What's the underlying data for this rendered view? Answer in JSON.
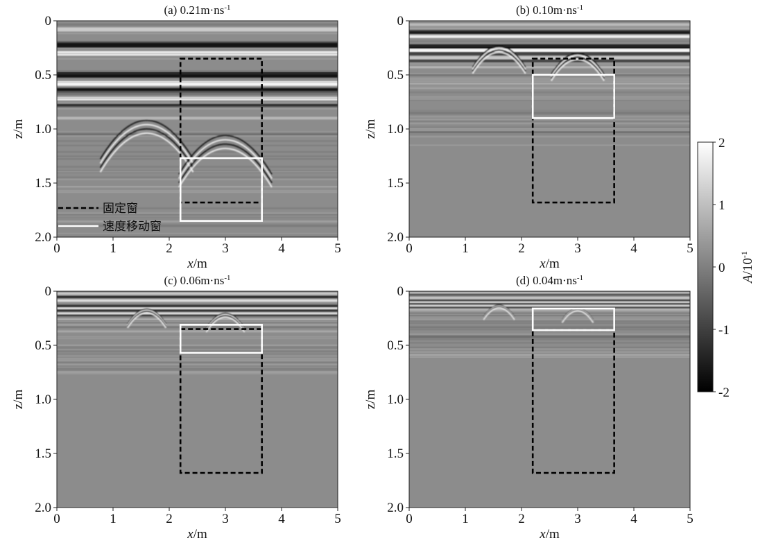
{
  "figure": {
    "x_label_var": "x",
    "x_label_unit": "/m",
    "y_label": "z/m",
    "colorbar_label_var": "A",
    "colorbar_label_unit": "/10",
    "colorbar_label_exp": "-1",
    "legend": {
      "fixed_window": "固定窗",
      "velocity_moving_window": "速度移动窗"
    }
  },
  "chart_data": [
    {
      "type": "heatmap",
      "panel": "a",
      "title": "(a) 0.21m·ns",
      "title_exp": "-1",
      "xlim": [
        0,
        5
      ],
      "ylim": [
        0,
        2.0
      ],
      "x_ticks": [
        "0",
        "1",
        "2",
        "3",
        "4",
        "5"
      ],
      "y_ticks": [
        "0",
        "0.5",
        "1.0",
        "1.5",
        "2.0"
      ],
      "velocity": 0.21,
      "fixed_window": {
        "x": [
          2.2,
          3.65
        ],
        "z": [
          0.35,
          1.68
        ]
      },
      "moving_window": {
        "x": [
          2.2,
          3.65
        ],
        "z": [
          1.27,
          1.85
        ]
      },
      "show_legend": true
    },
    {
      "type": "heatmap",
      "panel": "b",
      "title": "(b) 0.10m·ns",
      "title_exp": "-1",
      "xlim": [
        0,
        5
      ],
      "ylim": [
        0,
        2.0
      ],
      "x_ticks": [
        "0",
        "1",
        "2",
        "3",
        "4",
        "5"
      ],
      "y_ticks": [
        "0",
        "0.5",
        "1.0",
        "1.5",
        "2.0"
      ],
      "velocity": 0.1,
      "fixed_window": {
        "x": [
          2.2,
          3.65
        ],
        "z": [
          0.35,
          1.68
        ]
      },
      "moving_window": {
        "x": [
          2.2,
          3.65
        ],
        "z": [
          0.5,
          0.9
        ]
      },
      "show_legend": false
    },
    {
      "type": "heatmap",
      "panel": "c",
      "title": "(c) 0.06m·ns",
      "title_exp": "-1",
      "xlim": [
        0,
        5
      ],
      "ylim": [
        0,
        2.0
      ],
      "x_ticks": [
        "0",
        "1",
        "2",
        "3",
        "4",
        "5"
      ],
      "y_ticks": [
        "0",
        "0.5",
        "1.0",
        "1.5",
        "2.0"
      ],
      "velocity": 0.06,
      "fixed_window": {
        "x": [
          2.2,
          3.65
        ],
        "z": [
          0.35,
          1.68
        ]
      },
      "moving_window": {
        "x": [
          2.2,
          3.65
        ],
        "z": [
          0.31,
          0.57
        ]
      },
      "show_legend": false
    },
    {
      "type": "heatmap",
      "panel": "d",
      "title": "(d) 0.04m·ns",
      "title_exp": "-1",
      "xlim": [
        0,
        5
      ],
      "ylim": [
        0,
        2.0
      ],
      "x_ticks": [
        "0",
        "1",
        "2",
        "3",
        "4",
        "5"
      ],
      "y_ticks": [
        "0",
        "0.5",
        "1.0",
        "1.5",
        "2.0"
      ],
      "velocity": 0.04,
      "fixed_window": {
        "x": [
          2.2,
          3.65
        ],
        "z": [
          0.36,
          1.68
        ]
      },
      "moving_window": {
        "x": [
          2.2,
          3.65
        ],
        "z": [
          0.16,
          0.36
        ]
      },
      "show_legend": false
    },
    {
      "type": "colorbar",
      "range": [
        -2,
        2
      ],
      "ticks": [
        "2",
        "1",
        "0",
        "-1",
        "-2"
      ],
      "colormap": "gray"
    }
  ]
}
